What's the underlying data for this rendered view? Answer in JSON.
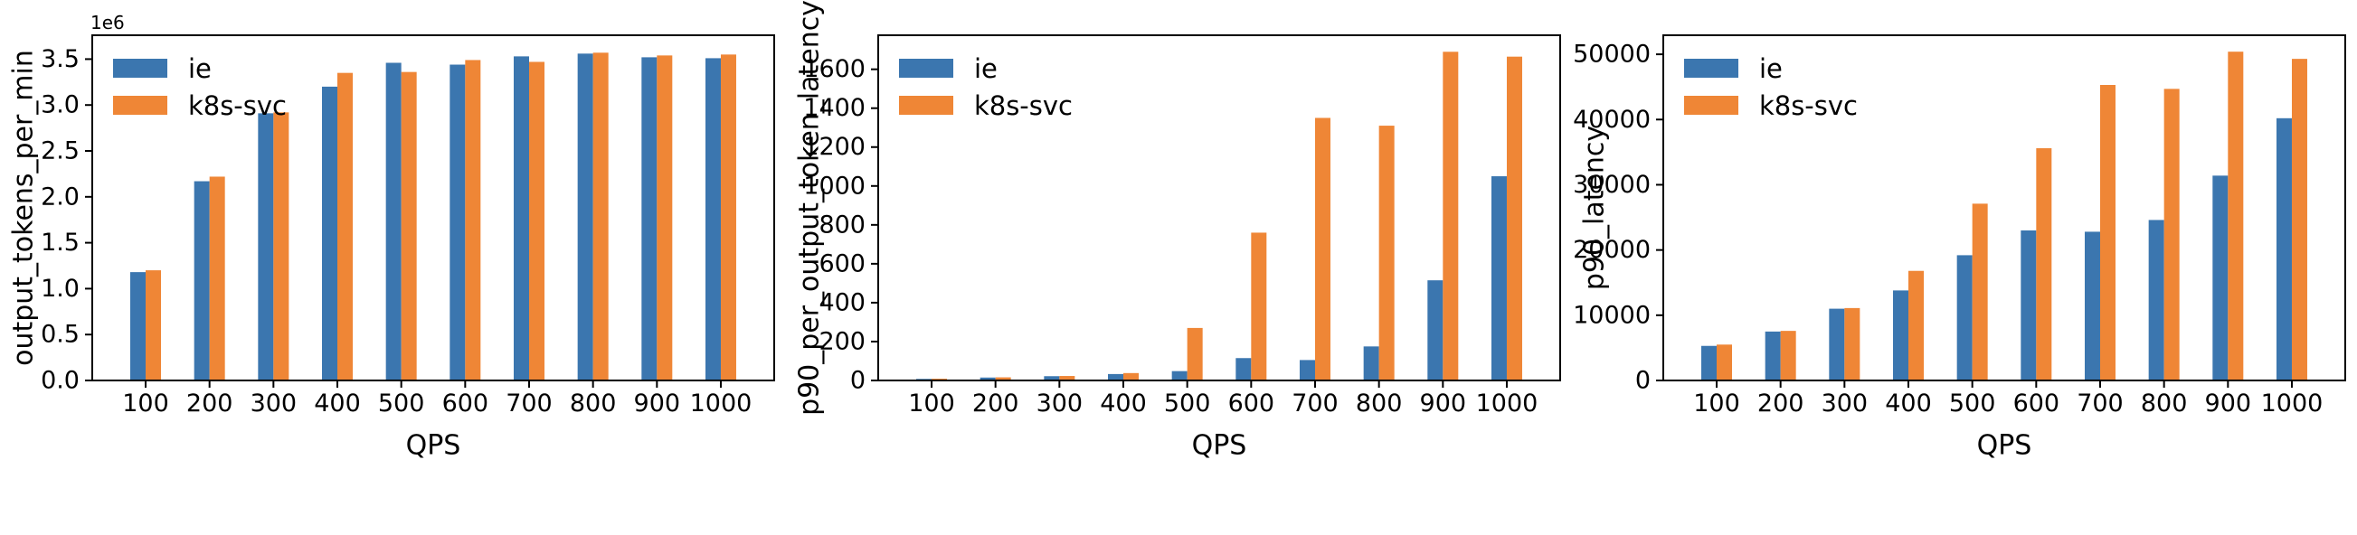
{
  "figure": {
    "background": "#ffffff",
    "text_color": "#000000",
    "spine_color": "#000000"
  },
  "legend": {
    "position": "upper left",
    "items": [
      {
        "label": "ie",
        "color": "#3b76af"
      },
      {
        "label": "k8s-svc",
        "color": "#ef8636"
      }
    ]
  },
  "chart_data": [
    {
      "type": "bar",
      "title": "",
      "xlabel": "QPS",
      "ylabel": "output_tokens_per_min",
      "offset_text": "1e6",
      "grid": false,
      "legend_position": "upper left",
      "categories": [
        "100",
        "200",
        "300",
        "400",
        "500",
        "600",
        "700",
        "800",
        "900",
        "1000"
      ],
      "series": [
        {
          "name": "ie",
          "color": "#3b76af",
          "values": [
            1180000,
            2170000,
            2910000,
            3200000,
            3460000,
            3440000,
            3530000,
            3560000,
            3520000,
            3510000
          ]
        },
        {
          "name": "k8s-svc",
          "color": "#ef8636",
          "values": [
            1200000,
            2220000,
            2920000,
            3350000,
            3360000,
            3490000,
            3470000,
            3570000,
            3540000,
            3550000
          ]
        }
      ],
      "ylim": [
        0,
        3760000
      ],
      "ytick_values": [
        0,
        500000,
        1000000,
        1500000,
        2000000,
        2500000,
        3000000,
        3500000
      ],
      "ytick_labels": [
        "0.0",
        "0.5",
        "1.0",
        "1.5",
        "2.0",
        "2.5",
        "3.0",
        "3.5"
      ]
    },
    {
      "type": "bar",
      "title": "",
      "xlabel": "QPS",
      "ylabel": "p90_per_output_token_latency",
      "offset_text": "",
      "grid": false,
      "legend_position": "upper left",
      "categories": [
        "100",
        "200",
        "300",
        "400",
        "500",
        "600",
        "700",
        "800",
        "900",
        "1000"
      ],
      "series": [
        {
          "name": "ie",
          "color": "#3b76af",
          "values": [
            8,
            15,
            22,
            33,
            48,
            115,
            105,
            175,
            515,
            1050
          ]
        },
        {
          "name": "k8s-svc",
          "color": "#ef8636",
          "values": [
            9,
            16,
            23,
            38,
            270,
            760,
            1350,
            1310,
            1690,
            1665
          ]
        }
      ],
      "ylim": [
        0,
        1775
      ],
      "ytick_values": [
        0,
        200,
        400,
        600,
        800,
        1000,
        1200,
        1400,
        1600
      ],
      "ytick_labels": [
        "0",
        "200",
        "400",
        "600",
        "800",
        "1000",
        "1200",
        "1400",
        "1600"
      ]
    },
    {
      "type": "bar",
      "title": "",
      "xlabel": "QPS",
      "ylabel": "p90_latency",
      "offset_text": "",
      "grid": false,
      "legend_position": "upper left",
      "categories": [
        "100",
        "200",
        "300",
        "400",
        "500",
        "600",
        "700",
        "800",
        "900",
        "1000"
      ],
      "series": [
        {
          "name": "ie",
          "color": "#3b76af",
          "values": [
            5300,
            7500,
            11000,
            13800,
            19200,
            23000,
            22800,
            24600,
            31400,
            40200
          ]
        },
        {
          "name": "k8s-svc",
          "color": "#ef8636",
          "values": [
            5500,
            7600,
            11100,
            16800,
            27100,
            35600,
            45300,
            44700,
            50400,
            49300
          ]
        }
      ],
      "ylim": [
        0,
        52920
      ],
      "ytick_values": [
        0,
        10000,
        20000,
        30000,
        40000,
        50000
      ],
      "ytick_labels": [
        "0",
        "10000",
        "20000",
        "30000",
        "40000",
        "50000"
      ]
    }
  ]
}
